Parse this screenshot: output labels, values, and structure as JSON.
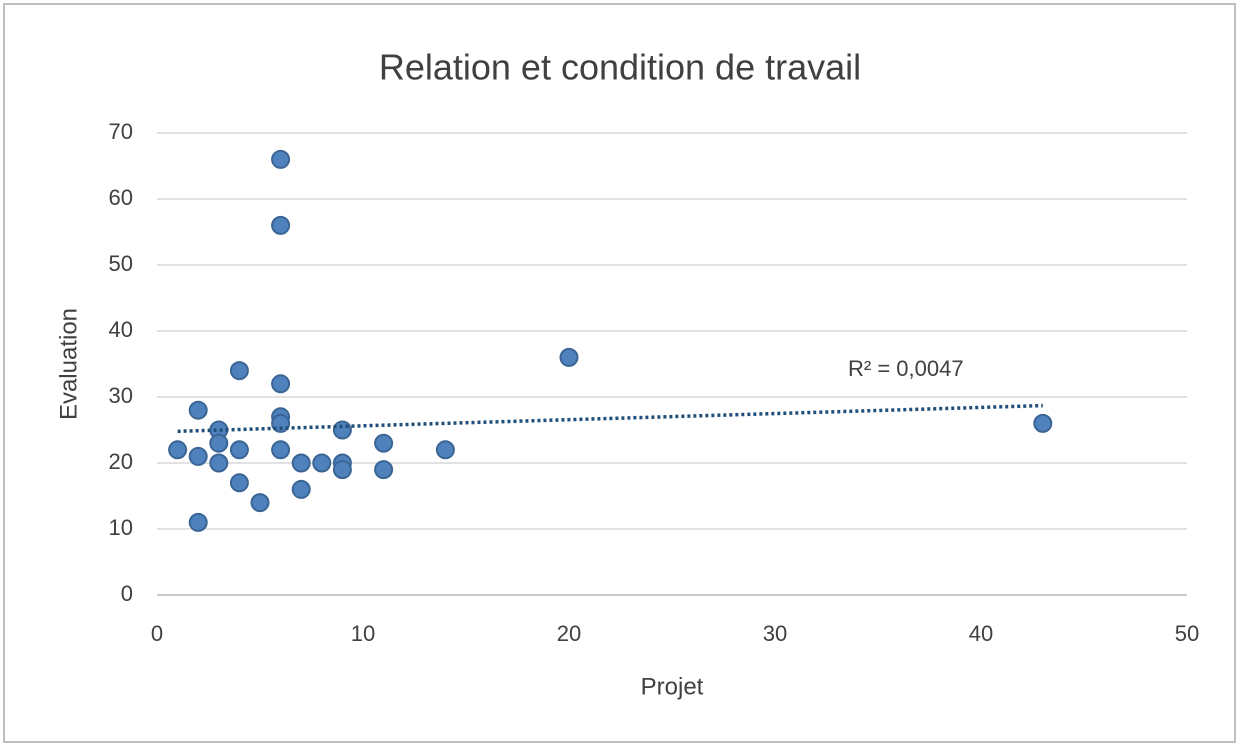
{
  "chart_data": {
    "type": "scatter",
    "title": "Relation et condition de travail",
    "x_label": "Projet",
    "y_label": "Evaluation",
    "x": [
      1,
      2,
      2,
      2,
      3,
      3,
      3,
      4,
      4,
      4,
      5,
      6,
      6,
      6,
      6,
      6,
      6,
      7,
      7,
      8,
      9,
      9,
      9,
      11,
      11,
      14,
      20,
      43
    ],
    "values": [
      22,
      28,
      21,
      11,
      25,
      23,
      20,
      34,
      22,
      17,
      14,
      66,
      56,
      32,
      27,
      26,
      22,
      20,
      16,
      20,
      25,
      20,
      19,
      23,
      19,
      22,
      36,
      26
    ],
    "color": "#4f81bd",
    "xlim": [
      0,
      50
    ],
    "xticks": [
      0,
      10,
      20,
      30,
      40,
      50
    ],
    "ylim": [
      0,
      70
    ],
    "yticks": [
      0,
      10,
      20,
      30,
      40,
      50,
      60,
      70
    ],
    "grid": true,
    "trendline": {
      "x": [
        1,
        43
      ],
      "y": [
        24.8,
        28.7
      ],
      "color": "#1f4e79",
      "label": "R² = 0,0047"
    }
  }
}
